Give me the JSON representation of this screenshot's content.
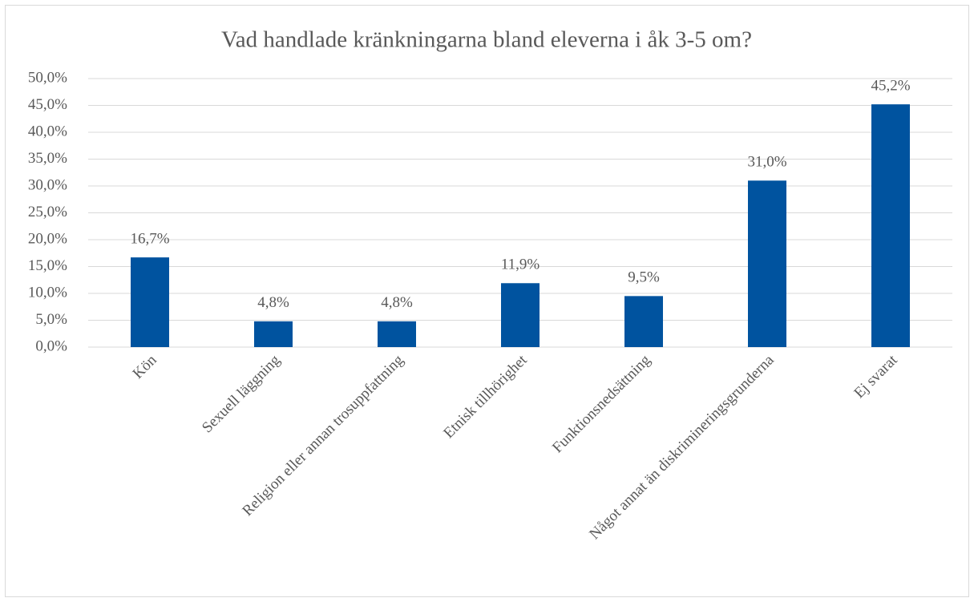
{
  "chart_data": {
    "type": "bar",
    "title": "Vad handlade kränkningarna bland eleverna i åk 3-5 om?",
    "categories": [
      "Kön",
      "Sexuell läggning",
      "Religion eller annan trosuppfattning",
      "Etnisk tillhörighet",
      "Funktionsnedsättning",
      "Något annat än diskrimineringsgrunderna",
      "Ej svarat"
    ],
    "values": [
      16.7,
      4.8,
      4.8,
      11.9,
      9.5,
      31.0,
      45.2
    ],
    "value_labels": [
      "16,7%",
      "4,8%",
      "4,8%",
      "11,9%",
      "9,5%",
      "31,0%",
      "45,2%"
    ],
    "color": "#00539f",
    "ylim": [
      0,
      50
    ],
    "yticks": [
      {
        "value": 0,
        "label": "0,0%"
      },
      {
        "value": 5,
        "label": "5,0%"
      },
      {
        "value": 10,
        "label": "10,0%"
      },
      {
        "value": 15,
        "label": "15,0%"
      },
      {
        "value": 20,
        "label": "20,0%"
      },
      {
        "value": 25,
        "label": "25,0%"
      },
      {
        "value": 30,
        "label": "30,0%"
      },
      {
        "value": 35,
        "label": "35,0%"
      },
      {
        "value": 40,
        "label": "40,0%"
      },
      {
        "value": 45,
        "label": "45,0%"
      },
      {
        "value": 50,
        "label": "50,0%"
      }
    ],
    "grid": true
  }
}
